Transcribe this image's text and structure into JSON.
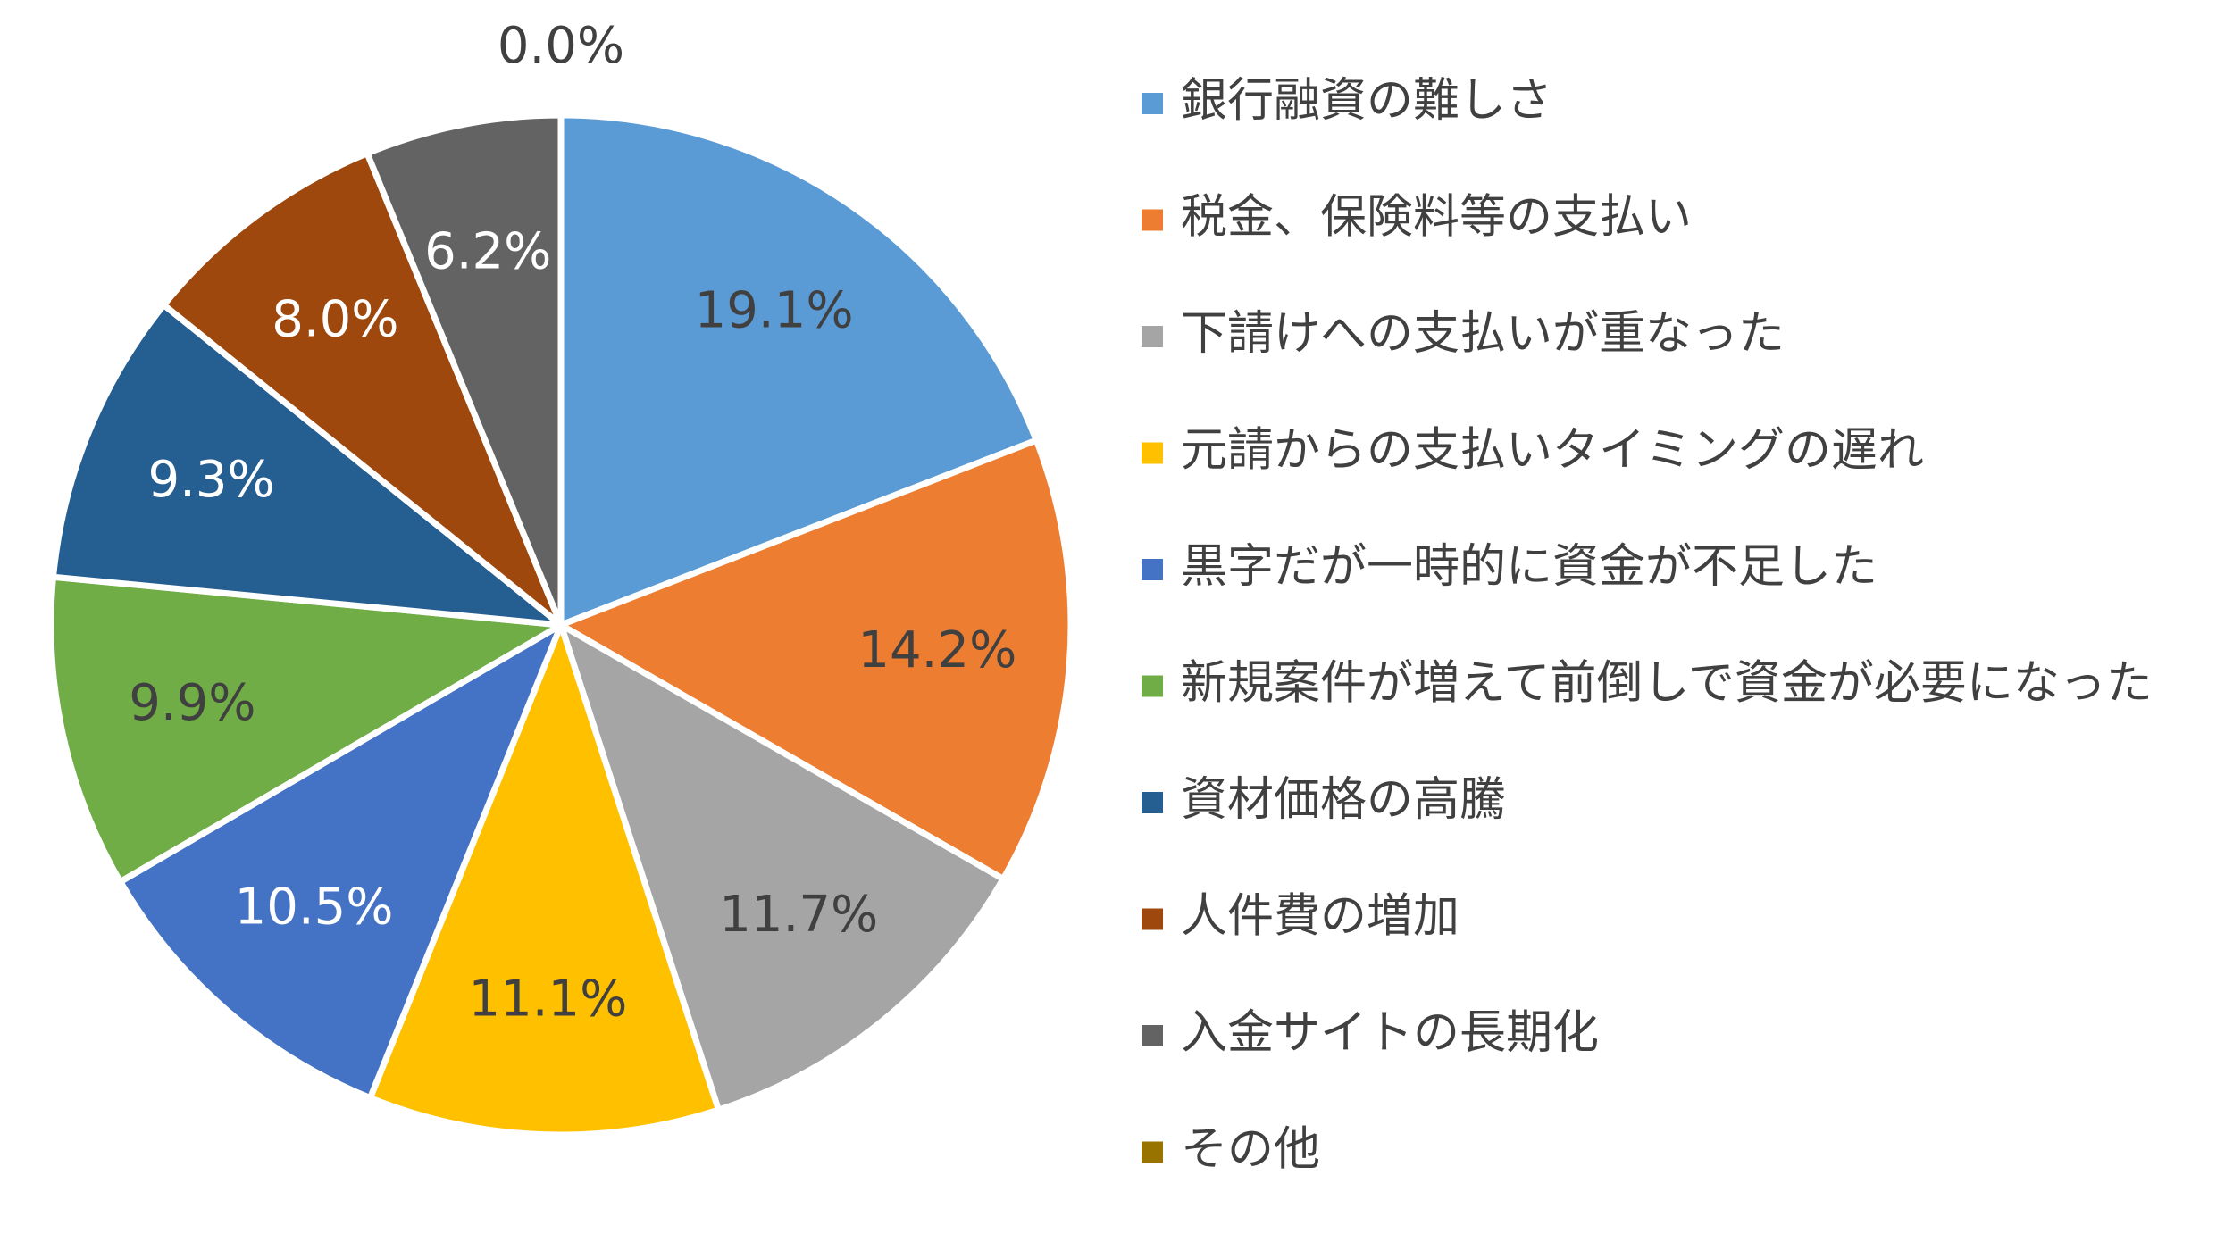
{
  "chart_data": {
    "type": "pie",
    "categories": [
      "銀行融資の難しさ",
      "税金、保険料等の支払い",
      "下請けへの支払いが重なった",
      "元請からの支払いタイミングの遅れ",
      "黒字だが一時的に資金が不足した",
      "新規案件が増えて前倒しで資金が必要になった",
      "資材価格の高騰",
      "人件費の増加",
      "入金サイトの長期化",
      "その他"
    ],
    "values": [
      19.1,
      14.2,
      11.7,
      11.1,
      10.5,
      9.9,
      9.3,
      8.0,
      6.2,
      0.0
    ],
    "value_labels": [
      "19.1%",
      "14.2%",
      "11.7%",
      "11.1%",
      "10.5%",
      "9.9%",
      "9.3%",
      "8.0%",
      "6.2%",
      "0.0%"
    ],
    "colors": [
      "#5B9BD5",
      "#ED7D31",
      "#A5A5A5",
      "#FFC000",
      "#4472C4",
      "#70AD47",
      "#255E91",
      "#9E480E",
      "#636363",
      "#997300"
    ],
    "legend": "right"
  }
}
